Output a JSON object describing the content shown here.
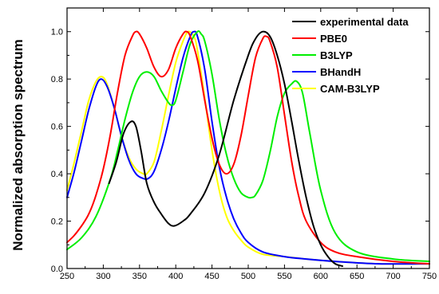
{
  "chart_data": {
    "type": "line",
    "title": "",
    "xlabel": "",
    "ylabel": "Normalized absorption spectrum",
    "xlim": [
      250,
      750
    ],
    "ylim": [
      0,
      1.1
    ],
    "x_ticks": [
      250,
      300,
      350,
      400,
      450,
      500,
      550,
      600,
      650,
      700,
      750
    ],
    "y_ticks": [
      0.0,
      0.2,
      0.4,
      0.6,
      0.8,
      1.0
    ],
    "y_tick_labels": [
      "0.0",
      "0.2",
      "0.4",
      "0.6",
      "0.8",
      "1.0"
    ],
    "grid": false,
    "legend_position": "top-right",
    "series": [
      {
        "name": "experimental data",
        "color": "#000000",
        "x": [
          308,
          318,
          328,
          338,
          345,
          352,
          360,
          370,
          380,
          390,
          398,
          410,
          420,
          440,
          460,
          480,
          500,
          510,
          520,
          530,
          540,
          550,
          560,
          570,
          580,
          590,
          600,
          610,
          620,
          630
        ],
        "y": [
          0.36,
          0.45,
          0.57,
          0.62,
          0.6,
          0.5,
          0.36,
          0.28,
          0.23,
          0.19,
          0.18,
          0.2,
          0.23,
          0.32,
          0.48,
          0.71,
          0.9,
          0.97,
          1.0,
          0.98,
          0.9,
          0.78,
          0.62,
          0.45,
          0.3,
          0.18,
          0.1,
          0.05,
          0.02,
          0.01
        ]
      },
      {
        "name": "PBE0",
        "color": "#ff0000",
        "x": [
          250,
          260,
          270,
          280,
          290,
          300,
          310,
          320,
          330,
          340,
          345,
          350,
          360,
          370,
          380,
          390,
          400,
          410,
          415,
          420,
          430,
          440,
          450,
          460,
          470,
          480,
          490,
          500,
          510,
          520,
          525,
          530,
          540,
          550,
          560,
          570,
          580,
          600,
          620,
          650,
          700,
          750
        ],
        "y": [
          0.11,
          0.14,
          0.18,
          0.23,
          0.31,
          0.42,
          0.57,
          0.75,
          0.9,
          0.98,
          1.0,
          0.99,
          0.93,
          0.85,
          0.81,
          0.84,
          0.93,
          0.99,
          1.0,
          0.98,
          0.88,
          0.71,
          0.55,
          0.44,
          0.4,
          0.44,
          0.56,
          0.73,
          0.89,
          0.97,
          0.98,
          0.96,
          0.85,
          0.65,
          0.45,
          0.3,
          0.2,
          0.11,
          0.07,
          0.05,
          0.03,
          0.02
        ]
      },
      {
        "name": "B3LYP",
        "color": "#00ee00",
        "x": [
          250,
          270,
          290,
          310,
          320,
          330,
          340,
          350,
          360,
          370,
          380,
          390,
          395,
          400,
          410,
          420,
          430,
          435,
          440,
          450,
          460,
          470,
          480,
          490,
          500,
          505,
          510,
          520,
          530,
          540,
          550,
          560,
          567,
          575,
          585,
          600,
          620,
          650,
          700,
          750
        ],
        "y": [
          0.08,
          0.13,
          0.22,
          0.38,
          0.5,
          0.63,
          0.74,
          0.81,
          0.83,
          0.81,
          0.75,
          0.7,
          0.69,
          0.71,
          0.83,
          0.95,
          1.0,
          0.99,
          0.96,
          0.82,
          0.63,
          0.48,
          0.38,
          0.32,
          0.3,
          0.3,
          0.31,
          0.37,
          0.49,
          0.64,
          0.74,
          0.78,
          0.79,
          0.74,
          0.57,
          0.33,
          0.15,
          0.07,
          0.04,
          0.03
        ]
      },
      {
        "name": "BHandH",
        "color": "#0000ff",
        "x": [
          250,
          260,
          270,
          280,
          290,
          297,
          305,
          315,
          325,
          335,
          345,
          355,
          362,
          370,
          380,
          390,
          400,
          410,
          420,
          425,
          430,
          440,
          450,
          460,
          470,
          480,
          490,
          500,
          520,
          550,
          580,
          620,
          680,
          750
        ],
        "y": [
          0.3,
          0.41,
          0.54,
          0.67,
          0.77,
          0.8,
          0.77,
          0.68,
          0.56,
          0.46,
          0.4,
          0.38,
          0.38,
          0.41,
          0.5,
          0.62,
          0.76,
          0.89,
          0.98,
          1.0,
          0.98,
          0.84,
          0.62,
          0.43,
          0.3,
          0.21,
          0.15,
          0.11,
          0.07,
          0.05,
          0.04,
          0.03,
          0.02,
          0.02
        ]
      },
      {
        "name": "CAM-B3LYP",
        "color": "#ffff00",
        "x": [
          250,
          260,
          270,
          280,
          290,
          298,
          305,
          315,
          325,
          335,
          345,
          355,
          360,
          370,
          380,
          390,
          400,
          410,
          417,
          425,
          430,
          440,
          450,
          460,
          470,
          480,
          490,
          500,
          520,
          550,
          580,
          620,
          680,
          750
        ],
        "y": [
          0.33,
          0.45,
          0.58,
          0.71,
          0.79,
          0.81,
          0.78,
          0.68,
          0.56,
          0.47,
          0.42,
          0.4,
          0.4,
          0.45,
          0.58,
          0.73,
          0.87,
          0.96,
          1.0,
          0.98,
          0.92,
          0.72,
          0.5,
          0.33,
          0.22,
          0.16,
          0.12,
          0.09,
          0.06,
          0.05,
          0.04,
          0.03,
          0.02,
          0.02
        ]
      }
    ]
  }
}
